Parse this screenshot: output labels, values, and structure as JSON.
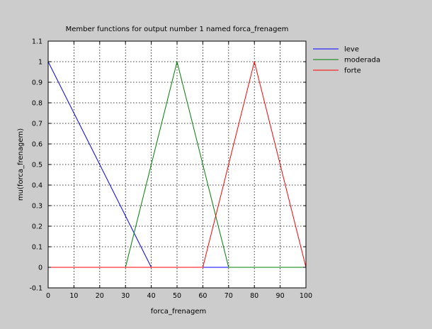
{
  "chart_data": {
    "type": "line",
    "title": "Member functions for output number 1 named forca_frenagem",
    "xlabel": "forca_frenagem",
    "ylabel": "mu(forca_frenagem)",
    "xlim": [
      0,
      100
    ],
    "ylim": [
      -0.1,
      1.1
    ],
    "xticks": [
      0,
      10,
      20,
      30,
      40,
      50,
      60,
      70,
      80,
      90,
      100
    ],
    "yticks": [
      -0.1,
      0,
      0.1,
      0.2,
      0.3,
      0.4,
      0.5,
      0.6,
      0.7,
      0.8,
      0.9,
      1,
      1.1
    ],
    "xtick_labels": [
      "0",
      "10",
      "20",
      "30",
      "40",
      "50",
      "60",
      "70",
      "80",
      "90",
      "100"
    ],
    "ytick_labels": [
      "-0.1",
      "0",
      "0.1",
      "0.2",
      "0.3",
      "0.4",
      "0.5",
      "0.6",
      "0.7",
      "0.8",
      "0.9",
      "1",
      "1.1"
    ],
    "grid": true,
    "legend_position": "right",
    "series": [
      {
        "name": "leve",
        "color": "#0000ff",
        "x": [
          0,
          40,
          100
        ],
        "y": [
          1,
          0,
          0
        ]
      },
      {
        "name": "moderada",
        "color": "#008000",
        "x": [
          0,
          30,
          50,
          70,
          100
        ],
        "y": [
          0,
          0,
          1,
          0,
          0
        ]
      },
      {
        "name": "forte",
        "color": "#ff0000",
        "x": [
          0,
          60,
          80,
          100
        ],
        "y": [
          0,
          0,
          1,
          0
        ]
      }
    ]
  }
}
